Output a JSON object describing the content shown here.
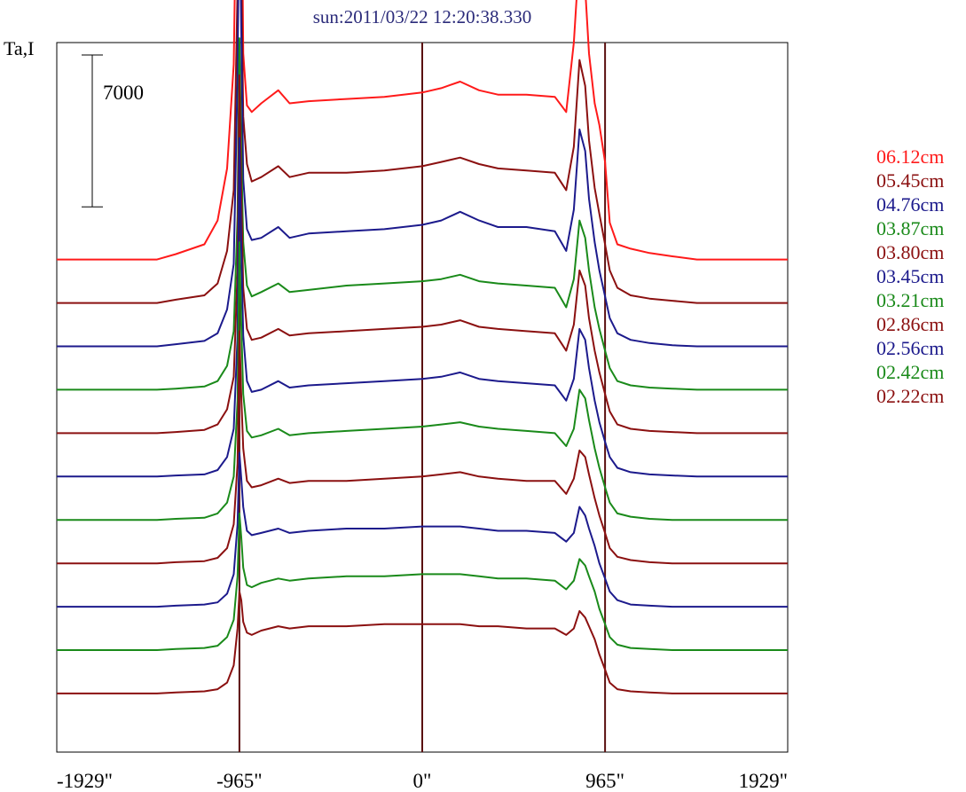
{
  "chart_data": {
    "type": "line",
    "title": "sun:2011/03/22 12:20:38.330",
    "ylabel": "Ta,I",
    "xlabel": "",
    "xlim": [
      -1929,
      1929
    ],
    "x_tick_labels": [
      "-1929\"",
      "-965\"",
      "0\"",
      "965\"",
      "1929\""
    ],
    "x_ticks": [
      -1929,
      -965,
      0,
      965,
      1929
    ],
    "vertical_lines": [
      -965,
      0,
      965
    ],
    "scale_bar_label": "7000",
    "scale_bar_value": 7000,
    "grid": false,
    "legend_position": "right",
    "x": [
      -1929,
      -1400,
      -1300,
      -1150,
      -1080,
      -1030,
      -995,
      -975,
      -965,
      -955,
      -945,
      -925,
      -900,
      -850,
      -760,
      -700,
      -600,
      -400,
      -200,
      0,
      100,
      200,
      300,
      400,
      550,
      700,
      760,
      800,
      830,
      860,
      880,
      910,
      935,
      965,
      990,
      1030,
      1100,
      1200,
      1320,
      1450,
      1929
    ],
    "series": [
      {
        "name": "06.12cm",
        "color": "#ff1a1a",
        "baseline": 10000,
        "profile": [
          0,
          0,
          250,
          700,
          1800,
          4200,
          9000,
          21000,
          30000,
          20000,
          9500,
          7100,
          6800,
          7200,
          7800,
          7200,
          7300,
          7400,
          7500,
          7700,
          7900,
          8200,
          7800,
          7600,
          7600,
          7500,
          6800,
          10000,
          14200,
          12500,
          9500,
          7200,
          6200,
          4500,
          1700,
          700,
          500,
          300,
          150,
          0,
          0
        ]
      },
      {
        "name": "05.45cm",
        "color": "#8b1010",
        "baseline": 12000,
        "profile": [
          0,
          0,
          150,
          350,
          900,
          2400,
          5200,
          14500,
          22000,
          15500,
          8600,
          6400,
          5600,
          5800,
          6300,
          5800,
          6000,
          6000,
          6100,
          6300,
          6500,
          6700,
          6400,
          6200,
          6100,
          6000,
          5200,
          7200,
          11200,
          10000,
          7500,
          5300,
          4100,
          2700,
          1500,
          700,
          350,
          200,
          100,
          0,
          0
        ]
      },
      {
        "name": "04.76cm",
        "color": "#1c1a8c",
        "baseline": 14000,
        "profile": [
          0,
          0,
          100,
          250,
          600,
          1700,
          3800,
          12500,
          21500,
          14500,
          7700,
          5400,
          4900,
          5000,
          5500,
          5000,
          5200,
          5300,
          5400,
          5600,
          5800,
          6200,
          5800,
          5500,
          5500,
          5300,
          4400,
          6300,
          10000,
          9000,
          6800,
          4800,
          3500,
          2300,
          1300,
          600,
          300,
          150,
          50,
          0,
          0
        ]
      },
      {
        "name": "03.87cm",
        "color": "#1a8a1a",
        "baseline": 16000,
        "profile": [
          0,
          0,
          50,
          150,
          400,
          1100,
          2700,
          8000,
          16200,
          11000,
          6800,
          4800,
          4300,
          4500,
          4900,
          4500,
          4600,
          4800,
          4900,
          5000,
          5100,
          5300,
          5000,
          4900,
          4800,
          4700,
          3800,
          5100,
          7800,
          7000,
          5500,
          3800,
          2800,
          1800,
          1000,
          400,
          200,
          100,
          50,
          0,
          0
        ]
      },
      {
        "name": "03.80cm",
        "color": "#8b1010",
        "baseline": 18000,
        "profile": [
          0,
          0,
          50,
          150,
          400,
          1100,
          2600,
          7500,
          16500,
          11000,
          6700,
          4800,
          4300,
          4400,
          4800,
          4500,
          4600,
          4700,
          4800,
          4900,
          5000,
          5200,
          4900,
          4800,
          4700,
          4600,
          3800,
          5000,
          7500,
          6800,
          5300,
          3800,
          2800,
          1800,
          1000,
          400,
          200,
          100,
          50,
          0,
          0
        ]
      },
      {
        "name": "03.45cm",
        "color": "#1c1a8c",
        "baseline": 20000,
        "profile": [
          0,
          0,
          50,
          100,
          300,
          900,
          2200,
          6500,
          15600,
          10500,
          6500,
          4400,
          3900,
          4000,
          4400,
          4100,
          4200,
          4300,
          4400,
          4500,
          4600,
          4800,
          4500,
          4400,
          4300,
          4200,
          3500,
          4500,
          6800,
          6300,
          5000,
          3500,
          2500,
          1600,
          900,
          400,
          200,
          100,
          50,
          0,
          0
        ]
      },
      {
        "name": "03.21cm",
        "color": "#1a8a1a",
        "baseline": 22000,
        "profile": [
          0,
          0,
          50,
          100,
          300,
          800,
          2000,
          5500,
          12800,
          9000,
          5800,
          4100,
          3800,
          3900,
          4200,
          3900,
          4000,
          4100,
          4200,
          4300,
          4400,
          4500,
          4300,
          4200,
          4100,
          4000,
          3400,
          4200,
          6000,
          5600,
          4600,
          3300,
          2400,
          1500,
          800,
          300,
          150,
          50,
          0,
          0,
          0
        ]
      },
      {
        "name": "02.86cm",
        "color": "#8b1010",
        "baseline": 24000,
        "profile": [
          0,
          0,
          50,
          100,
          250,
          700,
          1800,
          4600,
          10700,
          7700,
          5300,
          3800,
          3500,
          3600,
          3900,
          3700,
          3800,
          3800,
          3900,
          4000,
          4100,
          4200,
          4000,
          3900,
          3800,
          3800,
          3200,
          3900,
          5200,
          4900,
          4100,
          3000,
          2200,
          1400,
          700,
          300,
          150,
          50,
          0,
          0,
          0
        ]
      },
      {
        "name": "02.56cm",
        "color": "#1c1a8c",
        "baseline": 26000,
        "profile": [
          0,
          0,
          50,
          100,
          200,
          600,
          1500,
          3800,
          7100,
          5900,
          4600,
          3500,
          3300,
          3400,
          3600,
          3400,
          3500,
          3600,
          3600,
          3700,
          3700,
          3700,
          3600,
          3500,
          3500,
          3400,
          3000,
          3400,
          4600,
          4200,
          3600,
          2800,
          2000,
          1300,
          700,
          300,
          100,
          50,
          0,
          0,
          0
        ]
      },
      {
        "name": "02.42cm",
        "color": "#1a8a1a",
        "baseline": 28000,
        "profile": [
          0,
          0,
          50,
          100,
          200,
          600,
          1400,
          3400,
          6300,
          5200,
          3800,
          3000,
          2900,
          3100,
          3300,
          3200,
          3300,
          3400,
          3400,
          3500,
          3500,
          3500,
          3400,
          3300,
          3300,
          3200,
          2800,
          3200,
          4200,
          3900,
          3400,
          2700,
          1900,
          1200,
          600,
          250,
          100,
          50,
          0,
          0,
          0
        ]
      },
      {
        "name": "02.22cm",
        "color": "#8b1010",
        "baseline": 30000,
        "profile": [
          0,
          0,
          50,
          100,
          200,
          500,
          1300,
          3000,
          4700,
          4300,
          3300,
          2800,
          2700,
          2900,
          3100,
          3000,
          3100,
          3100,
          3200,
          3200,
          3200,
          3200,
          3100,
          3100,
          3000,
          3000,
          2700,
          3000,
          3800,
          3500,
          3100,
          2500,
          1800,
          1100,
          500,
          200,
          100,
          50,
          0,
          0,
          0
        ]
      }
    ]
  }
}
